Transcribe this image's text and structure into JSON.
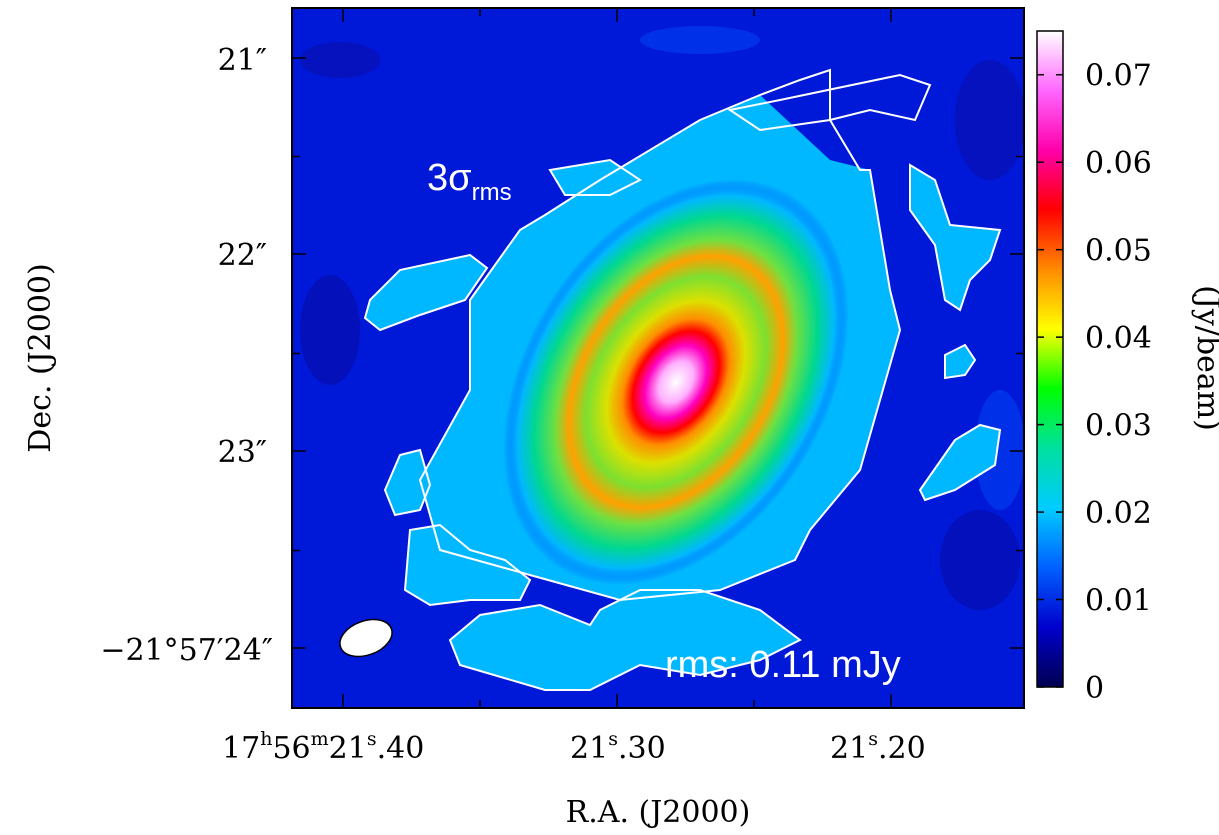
{
  "chart_data": {
    "type": "heatmap",
    "xlabel": "R.A. (J2000)",
    "ylabel": "Dec. (J2000)",
    "colorbar_label": "(Jy/beam)",
    "x_ticks": [
      {
        "pre": "17",
        "h": "h",
        "mid": "56",
        "m": "m",
        "sec": "21",
        "s": "s",
        "frac": ".40"
      },
      {
        "pre": "",
        "h": "",
        "mid": "",
        "m": "",
        "sec": "21",
        "s": "s",
        "frac": ".30"
      },
      {
        "pre": "",
        "h": "",
        "mid": "",
        "m": "",
        "sec": "21",
        "s": "s",
        "frac": ".20"
      }
    ],
    "y_ticks": [
      {
        "label": "21″"
      },
      {
        "label": "22″"
      },
      {
        "label": "23″"
      },
      {
        "label": "−21°57′24″"
      }
    ],
    "colorbar_ticks": [
      "0",
      "0.01",
      "0.02",
      "0.03",
      "0.04",
      "0.05",
      "0.06",
      "0.07"
    ],
    "colorbar_range": [
      0,
      0.075
    ],
    "colormap": [
      "#000050",
      "#0000cc",
      "#0060ff",
      "#00ccff",
      "#00e0a0",
      "#00ff00",
      "#ffff00",
      "#ff8c00",
      "#ff0000",
      "#ff00aa",
      "#ff66ff",
      "#ffffff"
    ],
    "contour_level": "3σ",
    "contour_subscript": "rms",
    "rms_annotation": "rms: 0.11 mJy",
    "peak_value": 0.075,
    "has_beam_ellipse": true
  }
}
